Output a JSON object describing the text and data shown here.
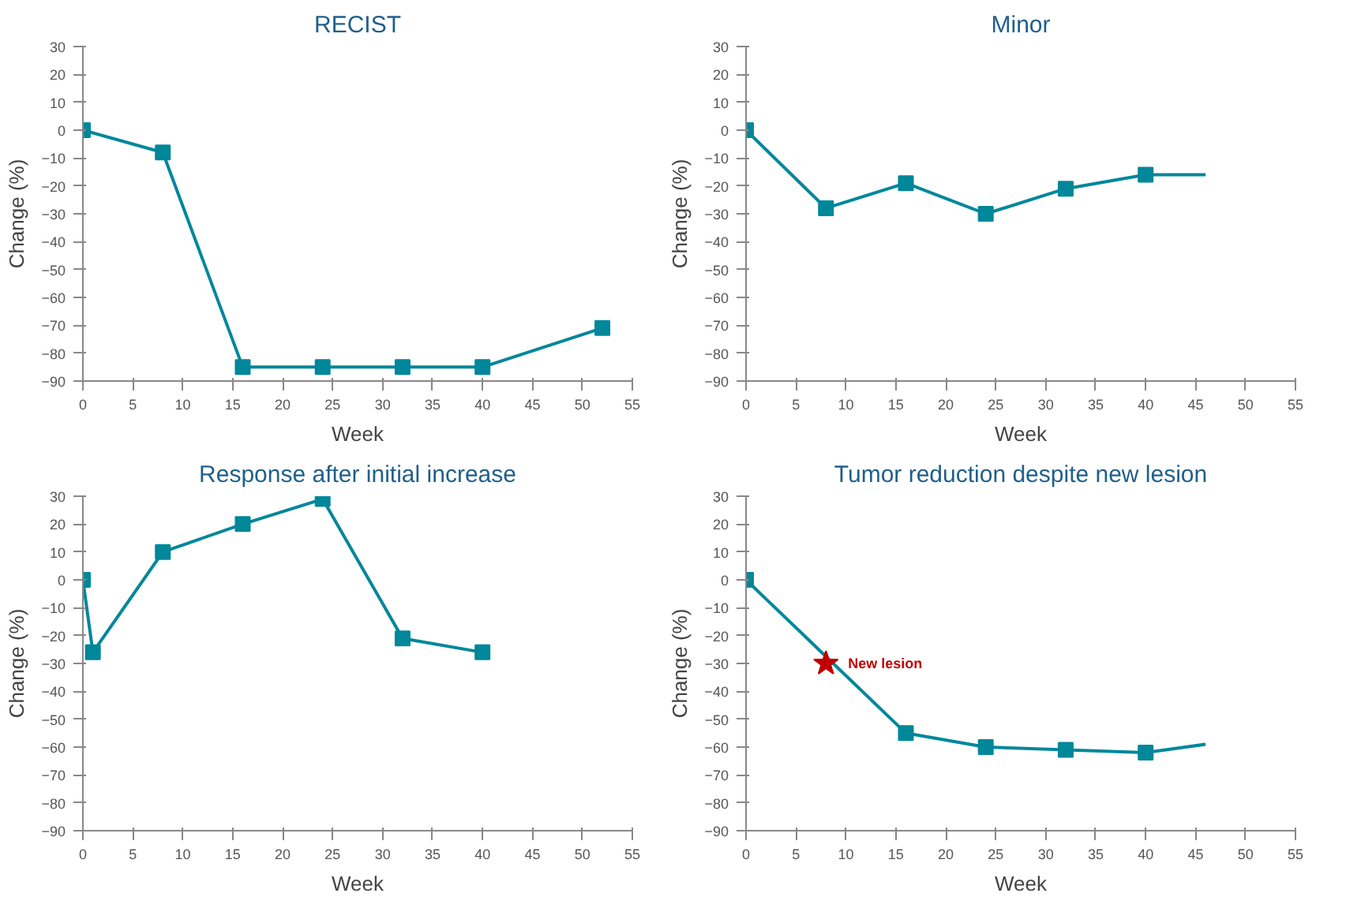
{
  "chart_data": [
    {
      "type": "line",
      "title": "RECIST",
      "xlabel": "Week",
      "ylabel": "Change (%)",
      "xlim": [
        0,
        55
      ],
      "ylim": [
        -90,
        30
      ],
      "xticks": [
        0,
        5,
        10,
        15,
        20,
        25,
        30,
        35,
        40,
        45,
        50,
        55
      ],
      "yticks": [
        30,
        20,
        10,
        0,
        {
          "value": -10,
          "label": "−10"
        },
        {
          "value": -20,
          "label": "−20"
        },
        {
          "value": -30,
          "label": "−30"
        },
        {
          "value": -40,
          "label": "−40"
        },
        {
          "value": -50,
          "label": "−50"
        },
        {
          "value": -60,
          "label": "−60"
        },
        {
          "value": -70,
          "label": "−70"
        },
        {
          "value": -80,
          "label": "−80"
        },
        {
          "value": -90,
          "label": "−90"
        }
      ],
      "grid": false,
      "marker": "square",
      "series": [
        {
          "color": "#00879a",
          "x": [
            0,
            8,
            16,
            24,
            32,
            40,
            52
          ],
          "values": [
            0,
            -8,
            -85,
            -85,
            -85,
            -85,
            -71
          ]
        }
      ]
    },
    {
      "type": "line",
      "title": "Minor",
      "xlabel": "Week",
      "ylabel": "Change (%)",
      "xlim": [
        0,
        55
      ],
      "ylim": [
        -90,
        30
      ],
      "xticks": [
        0,
        5,
        10,
        15,
        20,
        25,
        30,
        35,
        40,
        45,
        50,
        55
      ],
      "yticks": [
        30,
        20,
        10,
        0,
        {
          "value": -10,
          "label": "−10"
        },
        {
          "value": -20,
          "label": "−20"
        },
        {
          "value": -30,
          "label": "−30"
        },
        {
          "value": -40,
          "label": "−40"
        },
        {
          "value": -50,
          "label": "−50"
        },
        {
          "value": -60,
          "label": "−60"
        },
        {
          "value": -70,
          "label": "−70"
        },
        {
          "value": -80,
          "label": "−80"
        },
        {
          "value": -90,
          "label": "−90"
        }
      ],
      "grid": false,
      "marker": "square",
      "series": [
        {
          "color": "#00879a",
          "x": [
            0,
            8,
            16,
            24,
            32,
            40
          ],
          "values": [
            0,
            -28,
            -19,
            -30,
            -21,
            -16
          ]
        },
        {
          "color": "#00879a",
          "marker": "none",
          "x": [
            40,
            46
          ],
          "values": [
            -16,
            -16
          ]
        }
      ]
    },
    {
      "type": "line",
      "title": "Response after initial increase",
      "xlabel": "Week",
      "ylabel": "Change (%)",
      "xlim": [
        0,
        55
      ],
      "ylim": [
        -90,
        30
      ],
      "xticks": [
        0,
        5,
        10,
        15,
        20,
        25,
        30,
        35,
        40,
        45,
        50,
        55
      ],
      "yticks": [
        30,
        20,
        10,
        0,
        {
          "value": -10,
          "label": "−10"
        },
        {
          "value": -20,
          "label": "−20"
        },
        {
          "value": -30,
          "label": "−30"
        },
        {
          "value": -40,
          "label": "−40"
        },
        {
          "value": -50,
          "label": "−50"
        },
        {
          "value": -60,
          "label": "−60"
        },
        {
          "value": -70,
          "label": "−70"
        },
        {
          "value": -80,
          "label": "−80"
        },
        {
          "value": -90,
          "label": "−90"
        }
      ],
      "grid": false,
      "marker": "square",
      "series": [
        {
          "color": "#00879a",
          "x": [
            0,
            1,
            8,
            16,
            24,
            32,
            40
          ],
          "values": [
            0,
            -26,
            10,
            20,
            29,
            -21,
            -26
          ]
        }
      ]
    },
    {
      "type": "line",
      "title": "Tumor reduction despite new lesion",
      "xlabel": "Week",
      "ylabel": "Change (%)",
      "xlim": [
        0,
        55
      ],
      "ylim": [
        -90,
        30
      ],
      "xticks": [
        0,
        5,
        10,
        15,
        20,
        25,
        30,
        35,
        40,
        45,
        50,
        55
      ],
      "yticks": [
        30,
        20,
        10,
        0,
        {
          "value": -10,
          "label": "−10"
        },
        {
          "value": -20,
          "label": "−20"
        },
        {
          "value": -30,
          "label": "−30"
        },
        {
          "value": -40,
          "label": "−40"
        },
        {
          "value": -50,
          "label": "−50"
        },
        {
          "value": -60,
          "label": "−60"
        },
        {
          "value": -70,
          "label": "−70"
        },
        {
          "value": -80,
          "label": "−80"
        },
        {
          "value": -90,
          "label": "−90"
        }
      ],
      "grid": false,
      "marker": "square",
      "annotations": [
        {
          "text": "New lesion",
          "x": 8,
          "y": -30
        }
      ],
      "series": [
        {
          "color": "#00879a",
          "x": [
            0,
            16,
            24,
            32,
            40
          ],
          "values": [
            0,
            -55,
            -60,
            -61,
            -62
          ]
        },
        {
          "color": "#00879a",
          "marker": "none",
          "x": [
            40,
            46
          ],
          "values": [
            -62,
            -59
          ]
        },
        {
          "type": "scatter",
          "color": "#c00000",
          "marker": "star",
          "x": [
            8
          ],
          "values": [
            -30
          ]
        }
      ]
    }
  ]
}
